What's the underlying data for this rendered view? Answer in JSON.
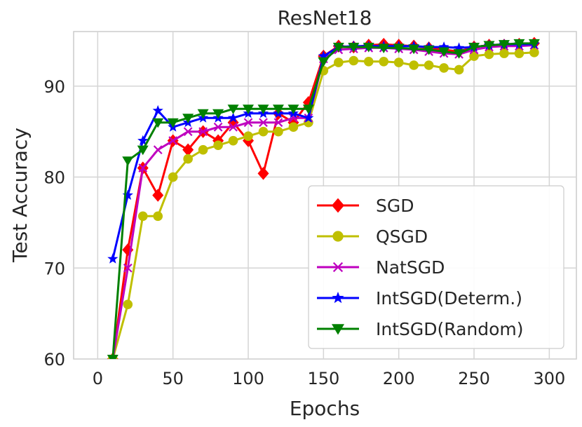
{
  "chart_data": {
    "type": "line",
    "title": "ResNet18",
    "xlabel": "Epochs",
    "ylabel": "Test Accuracy",
    "xlim": [
      -16,
      318
    ],
    "ylim": [
      60,
      96
    ],
    "xticks": [
      0,
      50,
      100,
      150,
      200,
      250,
      300
    ],
    "yticks": [
      60,
      70,
      80,
      90
    ],
    "grid": true,
    "legend_position": "lower-right",
    "series": [
      {
        "name": "SGD",
        "color": "#ff0000",
        "marker": "diamond",
        "marker_x": [
          10,
          20,
          30,
          40,
          50,
          60,
          70,
          80,
          90,
          100,
          110,
          120,
          130,
          140,
          150,
          160,
          170,
          180,
          190,
          200,
          210,
          220,
          230,
          240,
          250,
          260,
          270,
          280,
          290
        ],
        "marker_y": [
          60,
          72,
          81,
          78,
          84,
          83,
          85,
          84,
          86,
          84,
          80.4,
          87,
          86,
          88.2,
          93.3,
          94.4,
          94.3,
          94.5,
          94.6,
          94.5,
          94.4,
          94.2,
          94.0,
          93.8,
          94.3,
          94.5,
          94.5,
          94.6,
          94.7
        ]
      },
      {
        "name": "QSGD",
        "color": "#bfbf00",
        "marker": "circle",
        "marker_x": [
          10,
          20,
          30,
          40,
          50,
          60,
          70,
          80,
          90,
          100,
          110,
          120,
          130,
          140,
          150,
          160,
          170,
          180,
          190,
          200,
          210,
          220,
          230,
          240,
          250,
          260,
          270,
          280,
          290
        ],
        "marker_y": [
          60,
          66,
          75.7,
          75.7,
          80,
          82,
          83,
          83.5,
          84,
          84.5,
          85,
          85,
          85.5,
          86,
          91.7,
          92.6,
          92.8,
          92.7,
          92.7,
          92.6,
          92.3,
          92.3,
          92.0,
          91.8,
          93.3,
          93.5,
          93.6,
          93.6,
          93.7
        ]
      },
      {
        "name": "NatSGD",
        "color": "#bf00bf",
        "marker": "x",
        "marker_x": [
          10,
          20,
          30,
          40,
          50,
          60,
          70,
          80,
          90,
          100,
          110,
          120,
          130,
          140,
          150,
          160,
          170,
          180,
          190,
          200,
          210,
          220,
          230,
          240,
          250,
          260,
          270,
          280,
          290
        ],
        "marker_y": [
          60,
          70,
          81,
          83,
          84,
          85,
          85,
          85.5,
          85.5,
          86,
          86,
          86,
          86.5,
          86.5,
          93.0,
          94.0,
          94.1,
          94.2,
          94.2,
          94.1,
          94.0,
          93.8,
          93.6,
          93.5,
          94.0,
          94.3,
          94.4,
          94.4,
          94.5
        ]
      },
      {
        "name": "IntSGD(Determ.)",
        "color": "#0000ff",
        "marker": "star",
        "marker_x": [
          10,
          20,
          30,
          40,
          50,
          60,
          70,
          80,
          90,
          100,
          110,
          120,
          130,
          140,
          150,
          160,
          170,
          180,
          190,
          200,
          210,
          220,
          230,
          240,
          250,
          260,
          270,
          280,
          290
        ],
        "marker_y": [
          71,
          78,
          84,
          87.3,
          85.5,
          86,
          86.5,
          86.5,
          86.5,
          87,
          87,
          87,
          87,
          86.5,
          93.3,
          94.3,
          94.4,
          94.4,
          94.4,
          94.4,
          94.4,
          94.3,
          94.3,
          94.2,
          94.3,
          94.5,
          94.6,
          94.6,
          94.6
        ]
      },
      {
        "name": "IntSGD(Random)",
        "color": "#008000",
        "marker": "triangle-down",
        "marker_x": [
          10,
          20,
          30,
          40,
          50,
          60,
          70,
          80,
          90,
          100,
          110,
          120,
          130,
          140,
          150,
          160,
          170,
          180,
          190,
          200,
          210,
          220,
          230,
          240,
          250,
          260,
          270,
          280,
          290
        ],
        "marker_y": [
          60,
          81.8,
          83,
          86,
          86,
          86.5,
          87,
          87,
          87.5,
          87.5,
          87.5,
          87.5,
          87.5,
          87.5,
          92.7,
          94.3,
          94.3,
          94.3,
          94.2,
          94.2,
          94.1,
          94.0,
          93.8,
          93.6,
          94.3,
          94.5,
          94.6,
          94.7,
          94.7
        ]
      }
    ]
  }
}
